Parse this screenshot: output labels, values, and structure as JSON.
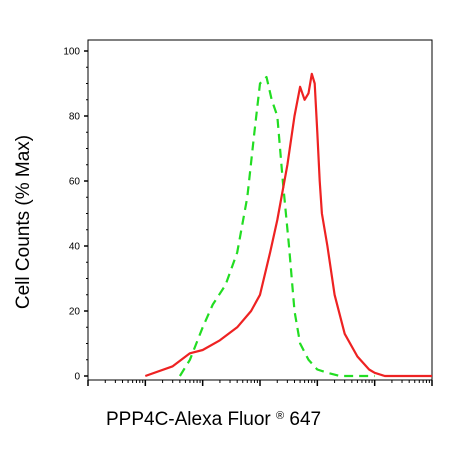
{
  "chart_data": {
    "type": "line",
    "title": "",
    "xlabel": "PPP4C-Alexa Fluor",
    "xlabel_mark": "®",
    "xlabel_suffix": " 647",
    "ylabel": "Cell Counts (% Max)",
    "xscale": "log",
    "xlim": [
      1,
      1000000
    ],
    "ylim": [
      0,
      100
    ],
    "yticks": [
      "0",
      "20",
      "40",
      "60",
      "80",
      "100"
    ],
    "grid": false,
    "legend": "none",
    "series": [
      {
        "color": "#22dd22",
        "dash": "dashed",
        "x": [
          40,
          60,
          100,
          150,
          250,
          400,
          600,
          800,
          1000,
          1300,
          1600,
          2000,
          2500,
          3200,
          4000,
          5000,
          7000,
          10000,
          15000,
          25000,
          50000,
          100000
        ],
        "y": [
          0,
          5,
          15,
          22,
          28,
          38,
          55,
          75,
          90,
          92,
          85,
          80,
          60,
          40,
          20,
          10,
          5,
          2,
          1,
          0,
          0,
          0
        ]
      },
      {
        "color": "#ee2222",
        "dash": "solid",
        "x": [
          10,
          30,
          60,
          100,
          200,
          400,
          700,
          1000,
          1500,
          2000,
          3000,
          4000,
          5000,
          6000,
          7000,
          8000,
          9000,
          10000,
          11000,
          12000,
          15000,
          20000,
          30000,
          50000,
          80000,
          100000,
          150000,
          300000,
          1000000
        ],
        "y": [
          0,
          3,
          7,
          8,
          11,
          15,
          20,
          25,
          38,
          48,
          65,
          80,
          89,
          85,
          87,
          93,
          90,
          75,
          60,
          50,
          40,
          25,
          13,
          6,
          2,
          1,
          0,
          0,
          0
        ]
      }
    ]
  }
}
